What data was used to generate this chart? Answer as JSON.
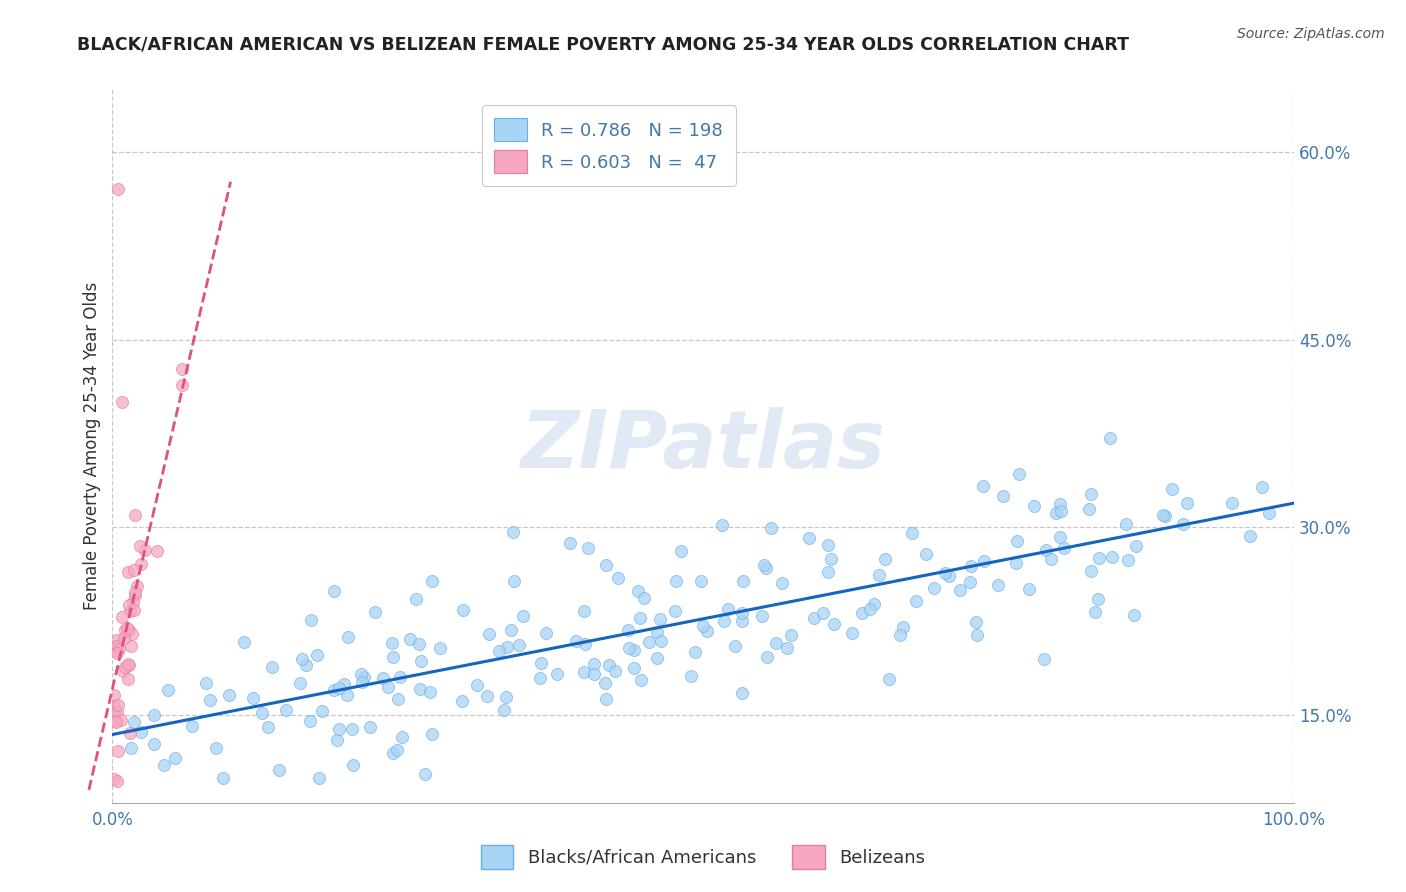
{
  "title": "BLACK/AFRICAN AMERICAN VS BELIZEAN FEMALE POVERTY AMONG 25-34 YEAR OLDS CORRELATION CHART",
  "source": "Source: ZipAtlas.com",
  "ylabel_label": "Female Poverty Among 25-34 Year Olds",
  "xlim": [
    0,
    1.0
  ],
  "ylim": [
    0.08,
    0.65
  ],
  "xticks": [
    0.0,
    1.0
  ],
  "xticklabels": [
    "0.0%",
    "100.0%"
  ],
  "ytick_positions": [
    0.15,
    0.3,
    0.45,
    0.6
  ],
  "yticklabels": [
    "15.0%",
    "30.0%",
    "45.0%",
    "60.0%"
  ],
  "blue_R": 0.786,
  "blue_N": 198,
  "pink_R": 0.603,
  "pink_N": 47,
  "blue_scatter_color": "#a8d4f5",
  "blue_scatter_edge": "#6aaee8",
  "pink_scatter_color": "#f5a8c0",
  "pink_scatter_edge": "#e87aaa",
  "blue_line_color": "#1565c0",
  "pink_line_color": "#e05080",
  "legend_label_blue": "Blacks/African Americans",
  "legend_label_pink": "Belizeans",
  "watermark": "ZIPatlas",
  "background_color": "#ffffff",
  "grid_color": "#c8c8c8",
  "tick_color": "#4477aa",
  "title_color": "#222222",
  "ylabel_color": "#333333",
  "source_color": "#555555"
}
